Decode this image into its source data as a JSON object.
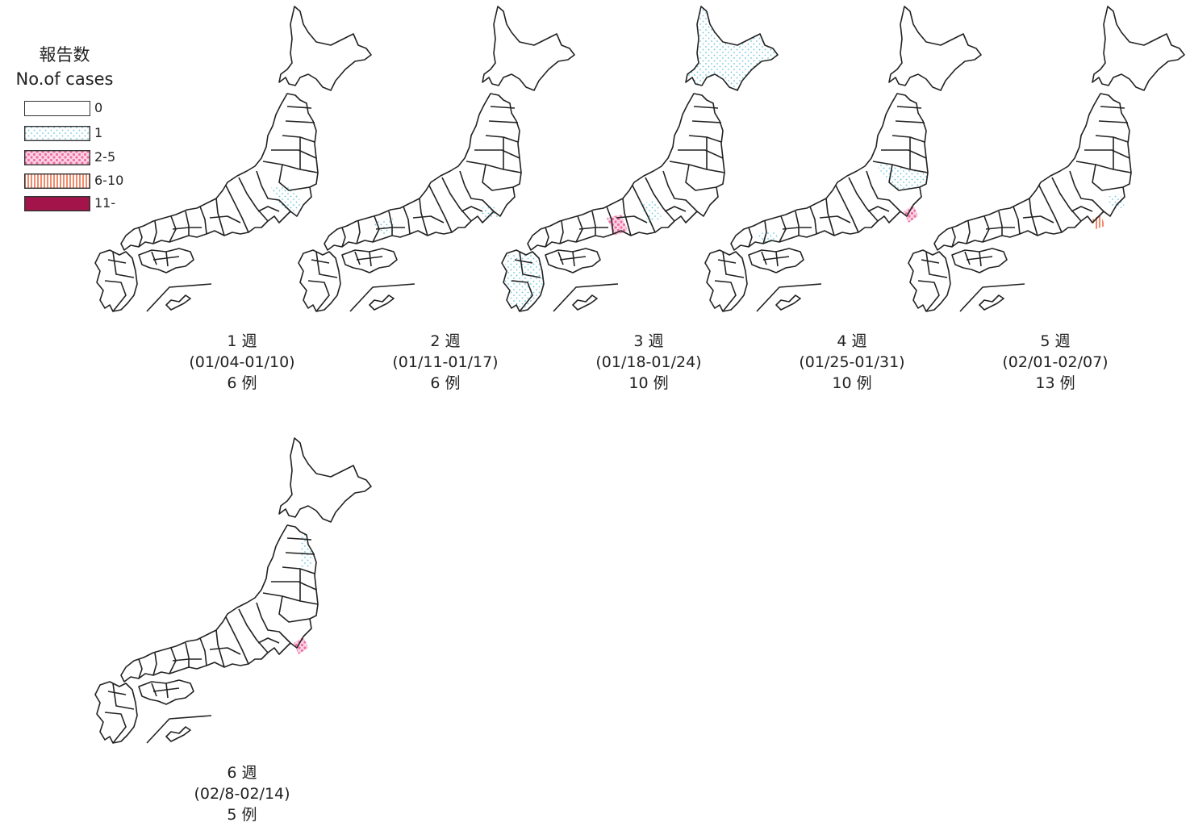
{
  "legend": {
    "title_ja": "報告数",
    "title_en": "No.of cases",
    "items": [
      {
        "label": "0",
        "fill": "none",
        "color": "#ffffff"
      },
      {
        "label": "1",
        "fill": "dots-cyan",
        "color": "#8fd3e4"
      },
      {
        "label": "2-5",
        "fill": "dots-pink",
        "color": "#f28fb8"
      },
      {
        "label": "6-10",
        "fill": "stripes-orange",
        "color": "#f08a6c"
      },
      {
        "label": "11-",
        "fill": "solid",
        "color": "#a3154a"
      }
    ]
  },
  "panels": [
    {
      "week": "1 週",
      "range": "(01/04-01/10)",
      "cases": "6 例"
    },
    {
      "week": "2 週",
      "range": "(01/11-01/17)",
      "cases": "6 例"
    },
    {
      "week": "3 週",
      "range": "(01/18-01/24)",
      "cases": "10 例"
    },
    {
      "week": "4 週",
      "range": "(01/25-01/31)",
      "cases": "10 例"
    },
    {
      "week": "5 週",
      "range": "(02/01-02/07)",
      "cases": "13 例"
    },
    {
      "week": "6 週",
      "range": "(02/8-02/14)",
      "cases": "5 例"
    }
  ]
}
